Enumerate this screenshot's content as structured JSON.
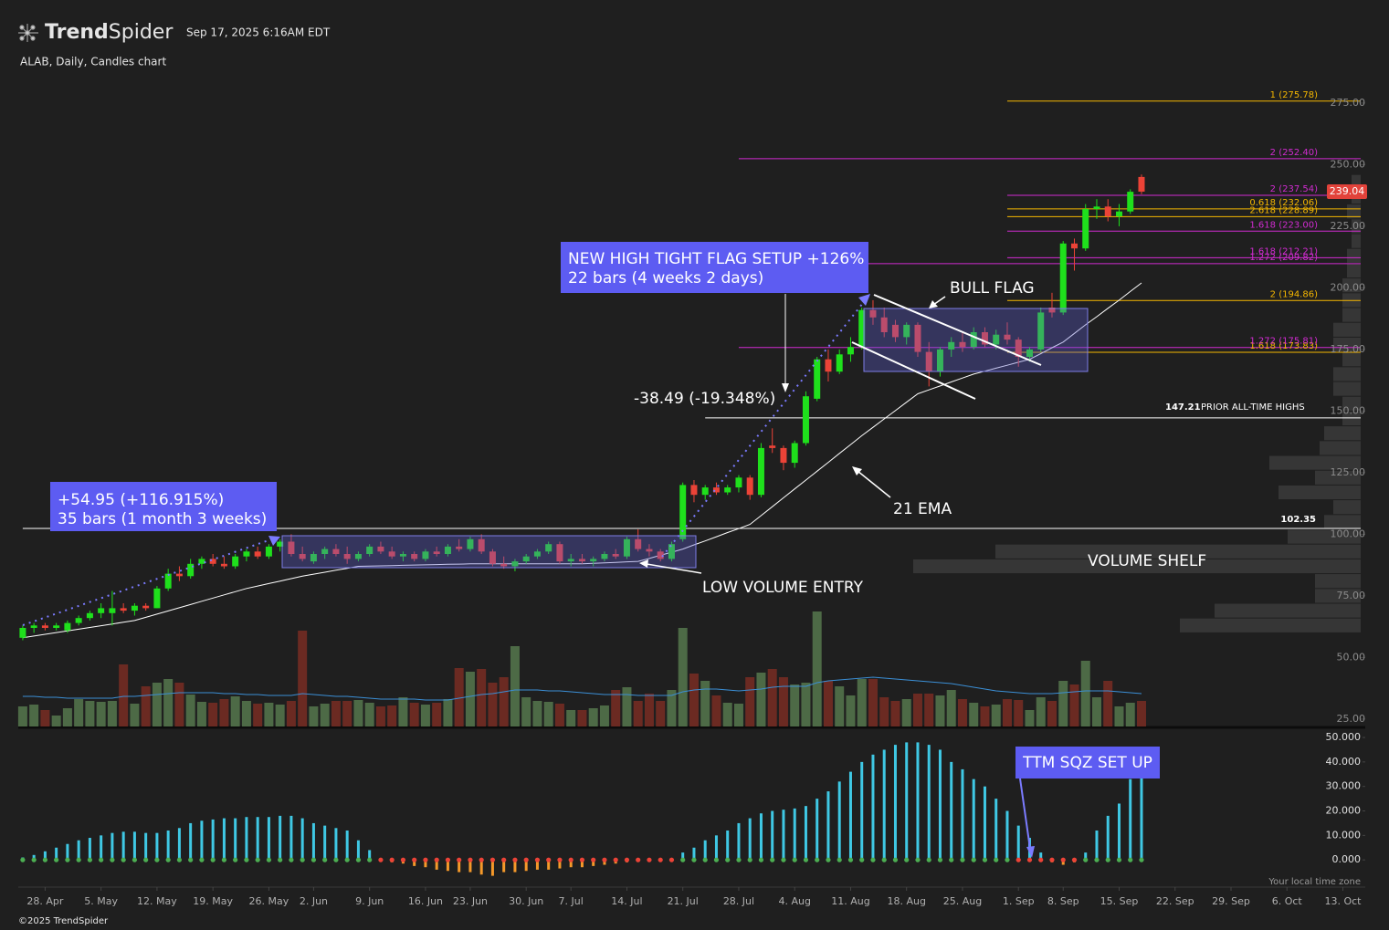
{
  "header": {
    "logo_bold": "Trend",
    "logo_light": "Spider",
    "timestamp": "Sep 17, 2025 6:16AM EDT",
    "subtitle": "ALAB, Daily, Candles chart"
  },
  "annotations": {
    "gain": [
      "+54.95 (+116.915%)",
      "35 bars (1 month 3 weeks)"
    ],
    "setup": [
      "NEW HIGH TIGHT FLAG SETUP +126%",
      "22 bars (4 weeks 2 days)"
    ],
    "pullback": "-38.49 (-19.348%)",
    "bull_flag": "BULL FLAG",
    "ema": "21 EMA",
    "entry": "LOW VOLUME ENTRY",
    "shelf": "VOLUME SHELF",
    "ttm": "TTM SQZ SET UP",
    "timezone": "Your local time zone"
  },
  "footer": "©2025 TrendSpider",
  "chart_data": {
    "type": "candlestick",
    "up_color": "#1fe01c",
    "down_color": "#ec4337",
    "xlim": [
      -0.4,
      120
    ],
    "xticks": [
      {
        "value": 2,
        "label": "28. Apr"
      },
      {
        "value": 7,
        "label": "5. May"
      },
      {
        "value": 12,
        "label": "12. May"
      },
      {
        "value": 17,
        "label": "19. May"
      },
      {
        "value": 22,
        "label": "26. May"
      },
      {
        "value": 26,
        "label": "2. Jun"
      },
      {
        "value": 31,
        "label": "9. Jun"
      },
      {
        "value": 36,
        "label": "16. Jun"
      },
      {
        "value": 40,
        "label": "23. Jun"
      },
      {
        "value": 45,
        "label": "30. Jun"
      },
      {
        "value": 49,
        "label": "7. Jul"
      },
      {
        "value": 54,
        "label": "14. Jul"
      },
      {
        "value": 59,
        "label": "21. Jul"
      },
      {
        "value": 64,
        "label": "28. Jul"
      },
      {
        "value": 69,
        "label": "4. Aug"
      },
      {
        "value": 74,
        "label": "11. Aug"
      },
      {
        "value": 79,
        "label": "18. Aug"
      },
      {
        "value": 84,
        "label": "25. Aug"
      },
      {
        "value": 89,
        "label": "1. Sep"
      },
      {
        "value": 93,
        "label": "8. Sep"
      },
      {
        "value": 98,
        "label": "15. Sep"
      },
      {
        "value": 103,
        "label": "22. Sep"
      },
      {
        "value": 108,
        "label": "29. Sep"
      },
      {
        "value": 113,
        "label": "6. Oct"
      },
      {
        "value": 118,
        "label": "13. Oct"
      }
    ],
    "ylim": [
      22,
      282
    ],
    "yticks": [
      {
        "value": 25,
        "label": "25.00"
      },
      {
        "value": 50,
        "label": "50.00"
      },
      {
        "value": 75,
        "label": "75.00"
      },
      {
        "value": 100,
        "label": "100.00"
      },
      {
        "value": 125,
        "label": "125.00"
      },
      {
        "value": 150,
        "label": "150.00"
      },
      {
        "value": 175,
        "label": "175.00"
      },
      {
        "value": 200,
        "label": "200.00"
      },
      {
        "value": 225,
        "label": "225.00"
      },
      {
        "value": 250,
        "label": "250.00"
      },
      {
        "value": 275,
        "label": "275.00"
      }
    ],
    "open": [
      58,
      62,
      63,
      62,
      61,
      64,
      66,
      68,
      68,
      70,
      69,
      71,
      70,
      78,
      84,
      83,
      88,
      90,
      88,
      87,
      91,
      93,
      91,
      95,
      97,
      92,
      89,
      92,
      94,
      92,
      90,
      92,
      95,
      93,
      91,
      92,
      90,
      93,
      92,
      95,
      94,
      98,
      93,
      88,
      87,
      89,
      91,
      93,
      96,
      89,
      90,
      89,
      90,
      92,
      91,
      98,
      94,
      93,
      90,
      98,
      120,
      116,
      119,
      117,
      119,
      123,
      116,
      136,
      135,
      129,
      137,
      155,
      171,
      166,
      173,
      176,
      191,
      188,
      185,
      180,
      185,
      174,
      166,
      175,
      178,
      176,
      182,
      177,
      181,
      179,
      172,
      175,
      192,
      190,
      218,
      216,
      232,
      233,
      229,
      231,
      245
    ],
    "high": [
      63,
      64,
      64,
      64,
      65,
      67,
      69,
      72,
      77,
      72,
      72,
      72,
      79,
      86,
      87,
      90,
      91,
      92,
      91,
      92,
      94,
      95,
      96,
      98,
      100,
      95,
      93,
      95,
      96,
      95,
      93,
      96,
      97,
      95,
      93,
      93,
      94,
      95,
      96,
      98,
      99,
      100,
      94,
      91,
      90,
      92,
      94,
      97,
      97,
      92,
      92,
      91,
      93,
      94,
      99,
      102,
      96,
      94,
      97,
      121,
      122,
      120,
      121,
      120,
      124,
      124,
      137,
      143,
      136,
      138,
      158,
      172,
      175,
      175,
      180,
      192,
      195,
      192,
      187,
      186,
      186,
      178,
      176,
      180,
      182,
      184,
      184,
      183,
      186,
      180,
      176,
      192,
      198,
      219,
      220,
      234,
      236,
      236,
      234,
      240,
      246
    ],
    "low": [
      57,
      60,
      61,
      61,
      60,
      63,
      65,
      66,
      63,
      68,
      67,
      69,
      70,
      77,
      81,
      82,
      86,
      87,
      86,
      86,
      89,
      90,
      90,
      93,
      91,
      89,
      88,
      90,
      91,
      88,
      89,
      91,
      92,
      90,
      89,
      89,
      89,
      91,
      91,
      93,
      93,
      92,
      87,
      86,
      85,
      88,
      90,
      92,
      88,
      87,
      88,
      87,
      89,
      90,
      90,
      93,
      91,
      89,
      89,
      97,
      113,
      114,
      116,
      116,
      117,
      114,
      115,
      133,
      126,
      127,
      136,
      154,
      162,
      165,
      170,
      175,
      185,
      180,
      178,
      177,
      172,
      160,
      164,
      172,
      174,
      175,
      176,
      175,
      177,
      168,
      170,
      174,
      188,
      189,
      207,
      215,
      228,
      227,
      225,
      230,
      238
    ],
    "close": [
      62,
      63,
      62,
      63,
      64,
      66,
      68,
      70,
      70,
      69,
      71,
      70,
      78,
      84,
      83,
      88,
      90,
      88,
      87,
      91,
      93,
      91,
      95,
      97,
      92,
      90,
      92,
      94,
      92,
      90,
      92,
      95,
      93,
      91,
      92,
      90,
      93,
      92,
      95,
      94,
      98,
      93,
      88,
      87,
      89,
      91,
      93,
      96,
      89,
      90,
      89,
      90,
      92,
      91,
      98,
      94,
      93,
      90,
      96,
      120,
      116,
      119,
      117,
      119,
      123,
      116,
      135,
      135,
      129,
      137,
      156,
      171,
      166,
      173,
      176,
      191,
      188,
      182,
      180,
      185,
      174,
      166,
      175,
      178,
      176,
      182,
      177,
      181,
      179,
      172,
      175,
      190,
      190,
      218,
      216,
      232,
      233,
      229,
      231,
      239,
      239.04
    ],
    "ema": {
      "color": "#ffffff",
      "values": [
        58,
        58.7,
        59.4,
        60.1,
        60.8,
        61.5,
        62.2,
        62.9,
        63.6,
        64.3,
        65,
        66.3,
        67.6,
        68.9,
        70.2,
        71.5,
        72.8,
        74.1,
        75.4,
        76.7,
        78,
        79,
        80,
        81,
        82,
        83,
        83.8,
        84.6,
        85.4,
        86.2,
        87,
        87.1,
        87.2,
        87.3,
        87.4,
        87.5,
        87.6,
        87.7,
        87.8,
        87.9,
        88,
        88,
        88,
        88,
        88,
        88,
        88,
        88,
        88,
        88,
        88,
        88.2,
        88.4,
        88.6,
        88.8,
        89,
        90.2,
        91.5,
        92.7,
        94,
        95.7,
        97.3,
        99,
        100.7,
        102.3,
        104,
        107.6,
        111.2,
        114.8,
        118.4,
        122,
        125.6,
        129.2,
        132.8,
        136.4,
        140,
        143.4,
        146.8,
        150.2,
        153.6,
        157,
        158.6,
        160.2,
        161.8,
        163.4,
        165,
        166.2,
        167.4,
        168.6,
        169.8,
        171,
        173.3,
        175.7,
        178,
        181.5,
        185,
        188.3,
        191.7,
        195,
        198.5,
        202
      ]
    },
    "volume": [
      2.2,
      2.4,
      1.8,
      1.2,
      2.0,
      3.0,
      2.8,
      2.7,
      2.8,
      6.8,
      2.5,
      4.4,
      4.8,
      5.2,
      4.8,
      3.5,
      2.7,
      2.6,
      3.0,
      3.3,
      2.8,
      2.5,
      2.6,
      2.4,
      2.8,
      10.5,
      2.2,
      2.5,
      2.8,
      2.8,
      2.9,
      2.6,
      2.2,
      2.3,
      3.2,
      2.6,
      2.4,
      2.6,
      3.0,
      6.4,
      6.0,
      6.3,
      4.8,
      5.4,
      8.8,
      3.2,
      2.8,
      2.7,
      2.5,
      1.8,
      1.8,
      2.0,
      2.3,
      4.0,
      4.3,
      2.8,
      3.6,
      2.8,
      4.0,
      10.8,
      5.8,
      5.0,
      3.4,
      2.6,
      2.5,
      5.4,
      5.9,
      6.3,
      5.4,
      4.6,
      4.8,
      12.6,
      5.0,
      4.4,
      3.4,
      5.2,
      5.2,
      3.2,
      2.8,
      3.0,
      3.6,
      3.6,
      3.4,
      4.0,
      3.0,
      2.6,
      2.2,
      2.4,
      3.0,
      2.9,
      1.8,
      3.2,
      2.8,
      5.0,
      4.6,
      7.2,
      3.2,
      5.0,
      2.2,
      2.6,
      2.8
    ],
    "volume_up_color": "#4d6a46",
    "volume_down_color": "#6b2a22",
    "volume_ma": {
      "color": "#3b8fd6",
      "values": [
        3.3,
        3.3,
        3.2,
        3.2,
        3.1,
        3.1,
        3.1,
        3.1,
        3.1,
        3.3,
        3.3,
        3.4,
        3.5,
        3.6,
        3.7,
        3.7,
        3.7,
        3.7,
        3.6,
        3.6,
        3.5,
        3.5,
        3.4,
        3.4,
        3.4,
        3.6,
        3.5,
        3.4,
        3.3,
        3.3,
        3.2,
        3.1,
        3.0,
        3.0,
        3.0,
        3.0,
        2.9,
        2.9,
        2.9,
        3.1,
        3.3,
        3.5,
        3.6,
        3.8,
        4.0,
        4.0,
        4.0,
        3.9,
        3.9,
        3.8,
        3.7,
        3.6,
        3.5,
        3.5,
        3.5,
        3.4,
        3.4,
        3.4,
        3.4,
        3.8,
        4.0,
        4.1,
        4.1,
        4.0,
        3.9,
        4.0,
        4.1,
        4.3,
        4.4,
        4.4,
        4.4,
        4.8,
        5.0,
        5.1,
        5.2,
        5.3,
        5.4,
        5.3,
        5.2,
        5.1,
        5.0,
        4.9,
        4.8,
        4.7,
        4.5,
        4.3,
        4.1,
        3.9,
        3.8,
        3.7,
        3.6,
        3.6,
        3.6,
        3.7,
        3.8,
        3.9,
        3.9,
        3.9,
        3.8,
        3.7,
        3.6
      ]
    },
    "volume_profile": {
      "color": "#363636",
      "bins": [
        60,
        66,
        72,
        78,
        84,
        90,
        96,
        102,
        108,
        114,
        120,
        126,
        132,
        138,
        144,
        150,
        156,
        162,
        168,
        174,
        180,
        186,
        192,
        198,
        204,
        210,
        216,
        222,
        228,
        234,
        240,
        246
      ],
      "values": [
        19.8,
        16,
        5,
        5,
        49,
        40,
        8,
        4,
        3,
        9,
        5,
        10,
        4.5,
        4,
        2,
        2,
        3,
        3,
        2,
        3,
        3,
        2,
        2,
        2,
        1.5,
        1.5,
        1,
        1,
        1.5,
        1,
        1
      ]
    },
    "levels": [
      {
        "label": "1 (275.78)",
        "value": 275.78,
        "color": "#f5b700",
        "from": 88
      },
      {
        "label": "2 (252.40)",
        "value": 252.4,
        "color": "#d12bd1",
        "from": 64
      },
      {
        "label": "2 (237.54)",
        "value": 237.54,
        "color": "#d12bd1",
        "from": 88
      },
      {
        "label": "0.618 (232.06)",
        "value": 232.06,
        "color": "#f5b700",
        "from": 88
      },
      {
        "label": "2.618 (228.89)",
        "value": 228.89,
        "color": "#f5b700",
        "from": 88
      },
      {
        "label": "1.618 (223.00)",
        "value": 223.0,
        "color": "#d12bd1",
        "from": 88
      },
      {
        "label": "1.272 (209.82)",
        "value": 209.82,
        "color": "#d12bd1",
        "from": 64
      },
      {
        "label": "1.618 (212.21)",
        "value": 212.21,
        "color": "#d12bd1",
        "from": 88
      },
      {
        "label": "2 (194.86)",
        "value": 194.86,
        "color": "#f5b700",
        "from": 88
      },
      {
        "label": "1.618 (173.83)",
        "value": 173.83,
        "color": "#f5b700",
        "from": 88
      },
      {
        "label": "1.272 (175.81)",
        "value": 175.81,
        "color": "#d12bd1",
        "from": 64
      },
      {
        "value": 147.21,
        "text": "PRIOR ALL-TIME HIGHS",
        "color": "#ffffff",
        "from": 61
      },
      {
        "value": 102.35,
        "color": "#ffffff",
        "from": 0
      }
    ],
    "indicator": {
      "ylim": [
        -10,
        53
      ],
      "yticks": [
        {
          "value": 0,
          "label": "0.000"
        },
        {
          "value": 10,
          "label": "10.000"
        },
        {
          "value": 20,
          "label": "20.000"
        },
        {
          "value": 30,
          "label": "30.000"
        },
        {
          "value": 40,
          "label": "40.000"
        },
        {
          "value": 50,
          "label": "50.000"
        }
      ],
      "pos_color": "#3fc8e4",
      "neg_color": "#f5992a",
      "on_color": "#ec4337",
      "off_color": "#4cae52",
      "values": [
        1,
        2,
        3.5,
        5,
        6.5,
        8,
        9,
        10,
        11,
        11.5,
        11.5,
        11,
        11,
        12,
        13,
        15,
        16,
        16.5,
        17,
        17,
        17.5,
        17.5,
        17.5,
        18,
        18,
        17,
        15,
        14,
        13,
        12,
        8,
        4,
        -0.5,
        -1,
        -1.5,
        -2.5,
        -3,
        -4,
        -4.5,
        -5,
        -5,
        -6,
        -6.5,
        -5,
        -5,
        -4.5,
        -4,
        -4,
        -3.5,
        -3,
        -3,
        -2.5,
        -2,
        -1.5,
        -1,
        -0.8,
        -0.5,
        -0.3,
        -0.2,
        3,
        5,
        8,
        10,
        12,
        15,
        17,
        19,
        20,
        20.5,
        21,
        22,
        25,
        28,
        32,
        36,
        40,
        43,
        45,
        47,
        48,
        48,
        47,
        45,
        40,
        37,
        33,
        30,
        25,
        20,
        14,
        9,
        3,
        -1,
        -2,
        -1,
        3,
        12,
        18,
        23,
        33,
        35
      ],
      "squeeze": [
        0,
        0,
        0,
        0,
        0,
        0,
        0,
        0,
        0,
        0,
        0,
        0,
        0,
        0,
        0,
        0,
        0,
        0,
        0,
        0,
        0,
        0,
        0,
        0,
        0,
        0,
        0,
        0,
        0,
        0,
        0,
        0,
        1,
        1,
        1,
        1,
        1,
        1,
        1,
        1,
        1,
        1,
        1,
        1,
        1,
        1,
        1,
        1,
        1,
        1,
        1,
        1,
        1,
        1,
        1,
        1,
        1,
        1,
        1,
        0,
        0,
        0,
        0,
        0,
        0,
        0,
        0,
        0,
        0,
        0,
        0,
        0,
        0,
        0,
        0,
        0,
        0,
        0,
        0,
        0,
        0,
        0,
        0,
        0,
        0,
        0,
        0,
        0,
        0,
        1,
        1,
        1,
        1,
        1,
        1,
        0,
        0,
        0,
        0,
        0,
        0
      ]
    }
  }
}
